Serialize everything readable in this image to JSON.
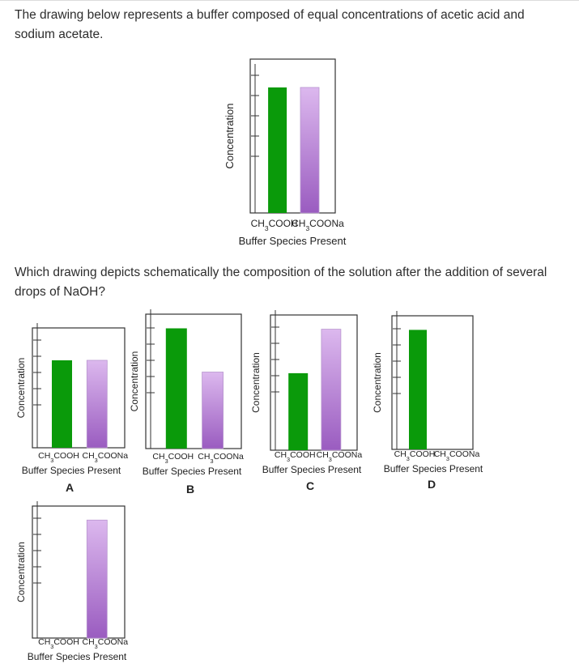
{
  "question": {
    "intro": "The drawing below represents a buffer composed of equal concentrations of acetic acid and sodium acetate.",
    "prompt": "Which drawing depicts schematically the composition of the solution after the addition of several drops of NaOH?"
  },
  "colors": {
    "acid": "#0a9a0a",
    "base_top": "#dcb8ee",
    "base_bottom": "#9a5cc0",
    "frame": "#333333"
  },
  "chart_data": [
    {
      "id": "initial",
      "type": "bar",
      "title": "",
      "ylabel": "Concentration",
      "xlabel": "Buffer Species Present",
      "categories": [
        "CH3COOH",
        "CH3COONa"
      ],
      "values": [
        5,
        5
      ],
      "ylim": [
        0,
        6
      ],
      "option_label": ""
    },
    {
      "id": "A",
      "type": "bar",
      "ylabel": "Concentration",
      "xlabel": "Buffer Species Present",
      "categories": [
        "CH3COOH",
        "CH3COONa"
      ],
      "values": [
        4.5,
        4.5
      ],
      "ylim": [
        0,
        6
      ],
      "option_label": "A"
    },
    {
      "id": "B",
      "type": "bar",
      "ylabel": "Concentration",
      "xlabel": "Buffer Species Present",
      "categories": [
        "CH3COOH",
        "CH3COONa"
      ],
      "values": [
        5.5,
        3.5
      ],
      "ylim": [
        0,
        6
      ],
      "option_label": "B"
    },
    {
      "id": "C",
      "type": "bar",
      "ylabel": "Concentration",
      "xlabel": "Buffer Species Present",
      "categories": [
        "CH3COOH",
        "CH3COONa"
      ],
      "values": [
        3.5,
        5.5
      ],
      "ylim": [
        0,
        6
      ],
      "option_label": "C"
    },
    {
      "id": "D",
      "type": "bar",
      "ylabel": "Concentration",
      "xlabel": "Buffer Species Present",
      "categories": [
        "CH3COOH",
        "CH3COONa"
      ],
      "values": [
        5.5,
        0
      ],
      "ylim": [
        0,
        6
      ],
      "option_label": "D"
    },
    {
      "id": "E",
      "type": "bar",
      "ylabel": "Concentration",
      "xlabel": "Buffer Species Present",
      "categories": [
        "CH3COOH",
        "CH3COONa"
      ],
      "values": [
        0,
        5.5
      ],
      "ylim": [
        0,
        6
      ],
      "option_label": ""
    }
  ]
}
